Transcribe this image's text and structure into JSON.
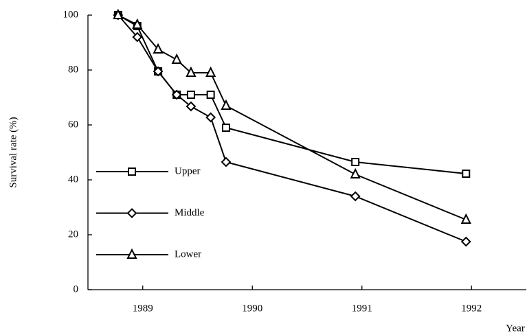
{
  "chart_data": {
    "type": "line",
    "y_label": "Survival rate (%)",
    "x_label": "Year",
    "xlim": [
      1988.5,
      1992.5
    ],
    "xticks": [
      1989,
      1990,
      1991,
      1992
    ],
    "ylim": [
      0,
      100
    ],
    "yticks": [
      0,
      20,
      40,
      60,
      80,
      100
    ],
    "grid": false,
    "legend": "left",
    "series": [
      {
        "name": "Upper",
        "color": "#000000",
        "marker": "square",
        "x": [
          1988.775,
          1988.95,
          1989.14,
          1989.31,
          1989.44,
          1989.62,
          1989.76,
          1990.94,
          1991.95
        ],
        "values": [
          100,
          96,
          79.5,
          71,
          71,
          71,
          59,
          46.5,
          42.25
        ]
      },
      {
        "name": "Middle",
        "color": "#000000",
        "marker": "diamond",
        "x": [
          1988.775,
          1988.95,
          1989.14,
          1989.31,
          1989.44,
          1989.62,
          1989.76,
          1990.94,
          1991.95
        ],
        "values": [
          100,
          92,
          79.5,
          71,
          66.75,
          62.75,
          46.5,
          34,
          17.5
        ]
      },
      {
        "name": "Lower",
        "color": "#000000",
        "marker": "triangle",
        "x": [
          1988.775,
          1988.95,
          1989.14,
          1989.31,
          1989.44,
          1989.62,
          1989.76,
          1990.94,
          1991.95
        ],
        "values": [
          100,
          96.5,
          87.5,
          83.75,
          79,
          79,
          67,
          42,
          25.5
        ]
      }
    ]
  }
}
